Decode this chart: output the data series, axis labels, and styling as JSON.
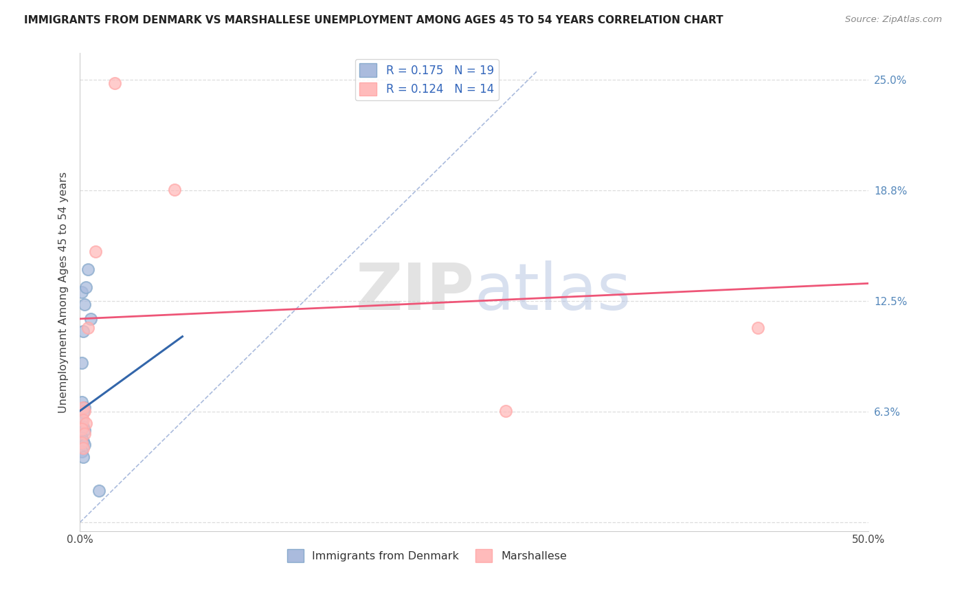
{
  "title": "IMMIGRANTS FROM DENMARK VS MARSHALLESE UNEMPLOYMENT AMONG AGES 45 TO 54 YEARS CORRELATION CHART",
  "source": "Source: ZipAtlas.com",
  "ylabel": "Unemployment Among Ages 45 to 54 years",
  "xlim": [
    0.0,
    0.5
  ],
  "ylim": [
    -0.005,
    0.265
  ],
  "legend1_label": "Immigrants from Denmark",
  "legend2_label": "Marshallese",
  "R1": 0.175,
  "N1": 19,
  "R2": 0.124,
  "N2": 14,
  "blue_color": "#88AACC",
  "pink_color": "#FFAAAA",
  "blue_fill": "#AABBDD",
  "pink_fill": "#FFBBBB",
  "blue_line_color": "#3366AA",
  "pink_line_color": "#EE5577",
  "dashed_line_color": "#AABBDD",
  "scatter_blue": [
    [
      0.001,
      0.13
    ],
    [
      0.005,
      0.143
    ],
    [
      0.004,
      0.133
    ],
    [
      0.003,
      0.123
    ],
    [
      0.007,
      0.115
    ],
    [
      0.002,
      0.108
    ],
    [
      0.001,
      0.09
    ],
    [
      0.001,
      0.068
    ],
    [
      0.003,
      0.065
    ],
    [
      0.002,
      0.062
    ],
    [
      0.001,
      0.057
    ],
    [
      0.002,
      0.054
    ],
    [
      0.003,
      0.052
    ],
    [
      0.001,
      0.048
    ],
    [
      0.002,
      0.046
    ],
    [
      0.003,
      0.044
    ],
    [
      0.001,
      0.04
    ],
    [
      0.002,
      0.037
    ],
    [
      0.012,
      0.018
    ]
  ],
  "scatter_pink": [
    [
      0.022,
      0.248
    ],
    [
      0.06,
      0.188
    ],
    [
      0.01,
      0.153
    ],
    [
      0.005,
      0.11
    ],
    [
      0.002,
      0.065
    ],
    [
      0.003,
      0.063
    ],
    [
      0.002,
      0.058
    ],
    [
      0.004,
      0.056
    ],
    [
      0.001,
      0.053
    ],
    [
      0.003,
      0.05
    ],
    [
      0.001,
      0.045
    ],
    [
      0.002,
      0.042
    ],
    [
      0.27,
      0.063
    ],
    [
      0.43,
      0.11
    ]
  ],
  "blue_line": {
    "x0": 0.0,
    "y0": 0.063,
    "x1": 0.065,
    "y1": 0.105
  },
  "pink_line": {
    "x0": 0.0,
    "y0": 0.115,
    "x1": 0.5,
    "y1": 0.135
  },
  "diag_line": {
    "x0": 0.0,
    "y0": 0.0,
    "x1": 0.29,
    "y1": 0.255
  },
  "ytick_positions": [
    0.0,
    0.0625,
    0.125,
    0.1875,
    0.25
  ],
  "ytick_labels": [
    "",
    "6.3%",
    "12.5%",
    "18.8%",
    "25.0%"
  ],
  "xtick_positions": [
    0.0,
    0.05,
    0.1,
    0.15,
    0.2,
    0.25,
    0.3,
    0.35,
    0.4,
    0.45,
    0.5
  ],
  "xtick_labels": [
    "0.0%",
    "",
    "",
    "",
    "",
    "",
    "",
    "",
    "",
    "",
    "50.0%"
  ]
}
